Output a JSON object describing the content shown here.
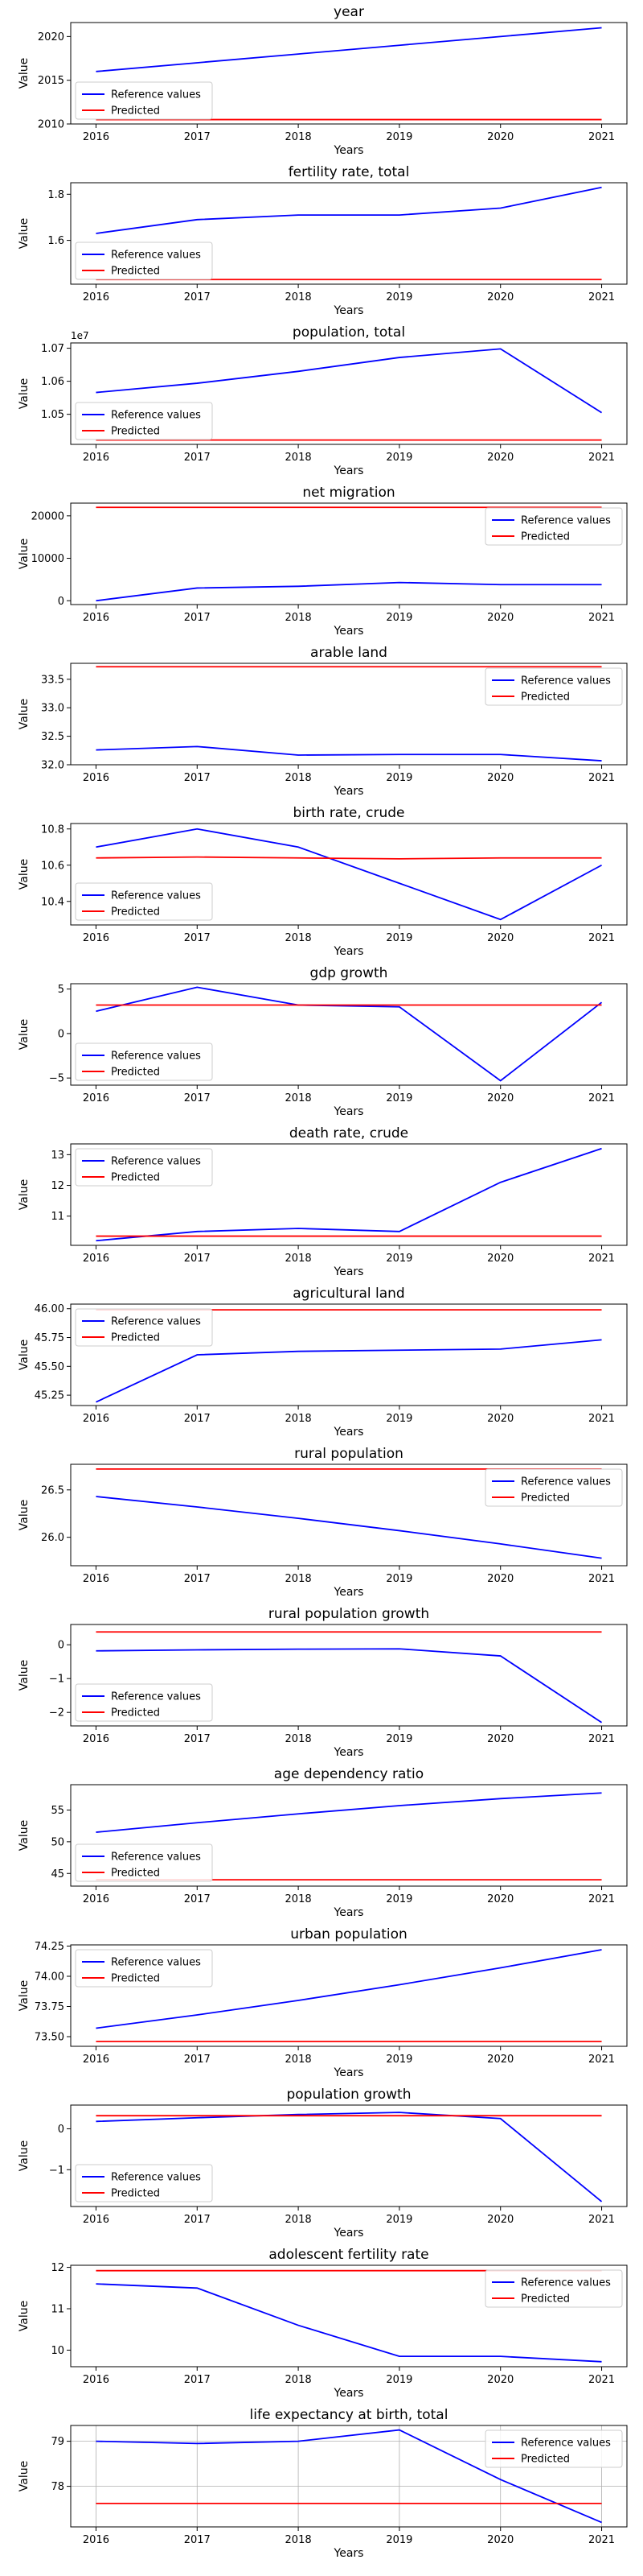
{
  "x_axis_label": "Years",
  "y_axis_label": "Value",
  "legend": {
    "reference_label": "Reference values",
    "predicted_label": "Predicted"
  },
  "colors": {
    "reference": "#0000ff",
    "predicted": "#ff0000"
  },
  "chart_data": [
    {
      "type": "line",
      "title": "year",
      "x": [
        2016,
        2017,
        2018,
        2019,
        2020,
        2021
      ],
      "xlim": [
        2015.75,
        2021.25
      ],
      "ylim": [
        2010,
        2021.6
      ],
      "yticks": [
        2010,
        2015,
        2020
      ],
      "ytick_labels": [
        "2010",
        "2015",
        "2020"
      ],
      "legend_loc": "lower left",
      "grid": false,
      "series": [
        {
          "name": "Reference values",
          "values": [
            2016,
            2017,
            2018,
            2019,
            2020,
            2021
          ]
        },
        {
          "name": "Predicted",
          "values": [
            2010.5,
            2010.5,
            2010.5,
            2010.5,
            2010.5,
            2010.5
          ]
        }
      ]
    },
    {
      "type": "line",
      "title": "fertility rate, total",
      "x": [
        2016,
        2017,
        2018,
        2019,
        2020,
        2021
      ],
      "xlim": [
        2015.75,
        2021.25
      ],
      "ylim": [
        1.41,
        1.85
      ],
      "yticks": [
        1.6,
        1.8
      ],
      "ytick_labels": [
        "1.6",
        "1.8"
      ],
      "legend_loc": "lower left",
      "grid": false,
      "series": [
        {
          "name": "Reference values",
          "values": [
            1.63,
            1.69,
            1.71,
            1.71,
            1.74,
            1.83
          ]
        },
        {
          "name": "Predicted",
          "values": [
            1.43,
            1.43,
            1.43,
            1.43,
            1.43,
            1.43
          ]
        }
      ]
    },
    {
      "type": "line",
      "title": "population, total",
      "x": [
        2016,
        2017,
        2018,
        2019,
        2020,
        2021
      ],
      "xlim": [
        2015.75,
        2021.25
      ],
      "ylim": [
        10409000,
        10716000
      ],
      "yticks": [
        10500000,
        10600000,
        10700000
      ],
      "ytick_labels": [
        "1.05",
        "1.06",
        "1.07"
      ],
      "offset_label": "1e7",
      "legend_loc": "lower left",
      "grid": false,
      "series": [
        {
          "name": "Reference values",
          "values": [
            10566000,
            10594000,
            10630000,
            10672000,
            10698000,
            10505000
          ]
        },
        {
          "name": "Predicted",
          "values": [
            10422000,
            10422000,
            10422000,
            10422000,
            10422000,
            10422000
          ]
        }
      ]
    },
    {
      "type": "line",
      "title": "net migration",
      "x": [
        2016,
        2017,
        2018,
        2019,
        2020,
        2021
      ],
      "xlim": [
        2015.75,
        2021.25
      ],
      "ylim": [
        -900,
        23000
      ],
      "yticks": [
        0,
        10000,
        20000
      ],
      "ytick_labels": [
        "0",
        "10000",
        "20000"
      ],
      "legend_loc": "upper right",
      "grid": false,
      "series": [
        {
          "name": "Reference values",
          "values": [
            0,
            3000,
            3400,
            4300,
            3800,
            3800
          ]
        },
        {
          "name": "Predicted",
          "values": [
            22000,
            22000,
            22000,
            22000,
            22000,
            22000
          ]
        }
      ]
    },
    {
      "type": "line",
      "title": "arable land",
      "x": [
        2016,
        2017,
        2018,
        2019,
        2020,
        2021
      ],
      "xlim": [
        2015.75,
        2021.25
      ],
      "ylim": [
        32.0,
        33.78
      ],
      "yticks": [
        32.0,
        32.5,
        33.0,
        33.5
      ],
      "ytick_labels": [
        "32.0",
        "32.5",
        "33.0",
        "33.5"
      ],
      "legend_loc": "upper right",
      "grid": false,
      "series": [
        {
          "name": "Reference values",
          "values": [
            32.26,
            32.32,
            32.17,
            32.18,
            32.18,
            32.07
          ]
        },
        {
          "name": "Predicted",
          "values": [
            33.72,
            33.72,
            33.72,
            33.72,
            33.72,
            33.72
          ]
        }
      ]
    },
    {
      "type": "line",
      "title": "birth rate, crude",
      "x": [
        2016,
        2017,
        2018,
        2019,
        2020,
        2021
      ],
      "xlim": [
        2015.75,
        2021.25
      ],
      "ylim": [
        10.27,
        10.83
      ],
      "yticks": [
        10.4,
        10.6,
        10.8
      ],
      "ytick_labels": [
        "10.4",
        "10.6",
        "10.8"
      ],
      "legend_loc": "lower left",
      "grid": false,
      "series": [
        {
          "name": "Reference values",
          "values": [
            10.7,
            10.8,
            10.7,
            10.5,
            10.3,
            10.6
          ]
        },
        {
          "name": "Predicted",
          "values": [
            10.64,
            10.645,
            10.64,
            10.635,
            10.64,
            10.64
          ]
        }
      ]
    },
    {
      "type": "line",
      "title": "gdp growth",
      "x": [
        2016,
        2017,
        2018,
        2019,
        2020,
        2021
      ],
      "xlim": [
        2015.75,
        2021.25
      ],
      "ylim": [
        -5.8,
        5.6
      ],
      "yticks": [
        -5,
        0,
        5
      ],
      "ytick_labels": [
        "−5",
        "0",
        "5"
      ],
      "legend_loc": "lower left",
      "grid": false,
      "series": [
        {
          "name": "Reference values",
          "values": [
            2.5,
            5.2,
            3.2,
            3.0,
            -5.3,
            3.5
          ]
        },
        {
          "name": "Predicted",
          "values": [
            3.2,
            3.2,
            3.2,
            3.2,
            3.2,
            3.2
          ]
        }
      ]
    },
    {
      "type": "line",
      "title": "death rate, crude",
      "x": [
        2016,
        2017,
        2018,
        2019,
        2020,
        2021
      ],
      "xlim": [
        2015.75,
        2021.25
      ],
      "ylim": [
        10.05,
        13.35
      ],
      "yticks": [
        11,
        12,
        13
      ],
      "ytick_labels": [
        "11",
        "12",
        "13"
      ],
      "legend_loc": "upper left",
      "grid": false,
      "series": [
        {
          "name": "Reference values",
          "values": [
            10.2,
            10.5,
            10.6,
            10.5,
            12.1,
            13.2
          ]
        },
        {
          "name": "Predicted",
          "values": [
            10.35,
            10.35,
            10.35,
            10.35,
            10.35,
            10.35
          ]
        }
      ]
    },
    {
      "type": "line",
      "title": "agricultural land",
      "x": [
        2016,
        2017,
        2018,
        2019,
        2020,
        2021
      ],
      "xlim": [
        2015.75,
        2021.25
      ],
      "ylim": [
        45.16,
        46.04
      ],
      "yticks": [
        45.25,
        45.5,
        45.75,
        46.0
      ],
      "ytick_labels": [
        "45.25",
        "45.50",
        "45.75",
        "46.00"
      ],
      "legend_loc": "upper left",
      "grid": false,
      "series": [
        {
          "name": "Reference values",
          "values": [
            45.19,
            45.6,
            45.63,
            45.64,
            45.65,
            45.73
          ]
        },
        {
          "name": "Predicted",
          "values": [
            45.99,
            45.99,
            45.99,
            45.99,
            45.99,
            45.99
          ]
        }
      ]
    },
    {
      "type": "line",
      "title": "rural population",
      "x": [
        2016,
        2017,
        2018,
        2019,
        2020,
        2021
      ],
      "xlim": [
        2015.75,
        2021.25
      ],
      "ylim": [
        25.7,
        26.77
      ],
      "yticks": [
        26.0,
        26.5
      ],
      "ytick_labels": [
        "26.0",
        "26.5"
      ],
      "legend_loc": "upper right",
      "grid": false,
      "series": [
        {
          "name": "Reference values",
          "values": [
            26.43,
            26.32,
            26.2,
            26.07,
            25.93,
            25.78
          ]
        },
        {
          "name": "Predicted",
          "values": [
            26.72,
            26.72,
            26.72,
            26.72,
            26.72,
            26.72
          ]
        }
      ]
    },
    {
      "type": "line",
      "title": "rural population growth",
      "x": [
        2016,
        2017,
        2018,
        2019,
        2020,
        2021
      ],
      "xlim": [
        2015.75,
        2021.25
      ],
      "ylim": [
        -2.4,
        0.6
      ],
      "yticks": [
        -2,
        -1,
        0
      ],
      "ytick_labels": [
        "−2",
        "−1",
        "0"
      ],
      "legend_loc": "lower left",
      "grid": false,
      "series": [
        {
          "name": "Reference values",
          "values": [
            -0.18,
            -0.15,
            -0.13,
            -0.12,
            -0.33,
            -2.3
          ]
        },
        {
          "name": "Predicted",
          "values": [
            0.38,
            0.38,
            0.38,
            0.38,
            0.38,
            0.38
          ]
        }
      ]
    },
    {
      "type": "line",
      "title": "age dependency ratio",
      "x": [
        2016,
        2017,
        2018,
        2019,
        2020,
        2021
      ],
      "xlim": [
        2015.75,
        2021.25
      ],
      "ylim": [
        43,
        59
      ],
      "yticks": [
        45,
        50,
        55
      ],
      "ytick_labels": [
        "45",
        "50",
        "55"
      ],
      "legend_loc": "lower left",
      "grid": false,
      "series": [
        {
          "name": "Reference values",
          "values": [
            51.5,
            53.0,
            54.4,
            55.7,
            56.8,
            57.7
          ]
        },
        {
          "name": "Predicted",
          "values": [
            44.0,
            44.0,
            44.0,
            44.0,
            44.0,
            44.0
          ]
        }
      ]
    },
    {
      "type": "line",
      "title": "urban population",
      "x": [
        2016,
        2017,
        2018,
        2019,
        2020,
        2021
      ],
      "xlim": [
        2015.75,
        2021.25
      ],
      "ylim": [
        73.42,
        74.26
      ],
      "yticks": [
        73.5,
        73.75,
        74.0,
        74.25
      ],
      "ytick_labels": [
        "73.50",
        "73.75",
        "74.00",
        "74.25"
      ],
      "legend_loc": "upper left",
      "grid": false,
      "series": [
        {
          "name": "Reference values",
          "values": [
            73.57,
            73.68,
            73.8,
            73.93,
            74.07,
            74.22
          ]
        },
        {
          "name": "Predicted",
          "values": [
            73.46,
            73.46,
            73.46,
            73.46,
            73.46,
            73.46
          ]
        }
      ]
    },
    {
      "type": "line",
      "title": "population growth",
      "x": [
        2016,
        2017,
        2018,
        2019,
        2020,
        2021
      ],
      "xlim": [
        2015.75,
        2021.25
      ],
      "ylim": [
        -1.9,
        0.58
      ],
      "yticks": [
        -1,
        0
      ],
      "ytick_labels": [
        "−1",
        "0"
      ],
      "legend_loc": "lower left",
      "grid": false,
      "series": [
        {
          "name": "Reference values",
          "values": [
            0.18,
            0.27,
            0.35,
            0.4,
            0.25,
            -1.78
          ]
        },
        {
          "name": "Predicted",
          "values": [
            0.32,
            0.32,
            0.32,
            0.32,
            0.32,
            0.32
          ]
        }
      ]
    },
    {
      "type": "line",
      "title": "adolescent fertility rate",
      "x": [
        2016,
        2017,
        2018,
        2019,
        2020,
        2021
      ],
      "xlim": [
        2015.75,
        2021.25
      ],
      "ylim": [
        9.6,
        12.05
      ],
      "yticks": [
        10,
        11,
        12
      ],
      "ytick_labels": [
        "10",
        "11",
        "12"
      ],
      "legend_loc": "upper right",
      "grid": false,
      "series": [
        {
          "name": "Reference values",
          "values": [
            11.6,
            11.5,
            10.6,
            9.85,
            9.85,
            9.72
          ]
        },
        {
          "name": "Predicted",
          "values": [
            11.92,
            11.92,
            11.92,
            11.92,
            11.92,
            11.92
          ]
        }
      ]
    },
    {
      "type": "line",
      "title": "life expectancy at birth, total",
      "x": [
        2016,
        2017,
        2018,
        2019,
        2020,
        2021
      ],
      "xlim": [
        2015.75,
        2021.25
      ],
      "ylim": [
        77.1,
        79.35
      ],
      "yticks": [
        78,
        79
      ],
      "ytick_labels": [
        "78",
        "79"
      ],
      "legend_loc": "upper right",
      "grid": true,
      "series": [
        {
          "name": "Reference values",
          "values": [
            79.0,
            78.95,
            79.0,
            79.25,
            78.15,
            77.2
          ]
        },
        {
          "name": "Predicted",
          "values": [
            77.62,
            77.62,
            77.62,
            77.62,
            77.62,
            77.62
          ]
        }
      ]
    }
  ]
}
